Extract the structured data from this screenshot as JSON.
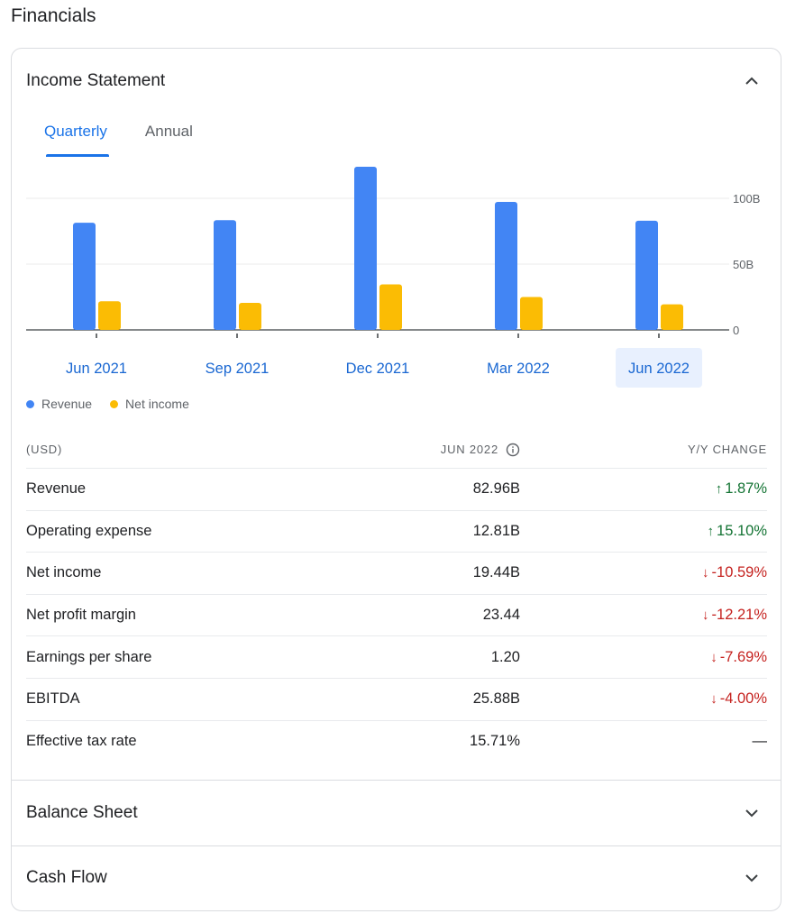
{
  "page": {
    "title": "Financials"
  },
  "income_statement": {
    "title": "Income Statement",
    "expanded": true,
    "tabs": [
      {
        "label": "Quarterly",
        "active": true
      },
      {
        "label": "Annual",
        "active": false
      }
    ],
    "selected_period": "Jun 2022",
    "table": {
      "headers": {
        "label": "(USD)",
        "period": "JUN 2022",
        "change": "Y/Y CHANGE"
      },
      "rows": [
        {
          "label": "Revenue",
          "value": "82.96B",
          "change": "1.87%",
          "direction": "up"
        },
        {
          "label": "Operating expense",
          "value": "12.81B",
          "change": "15.10%",
          "direction": "up"
        },
        {
          "label": "Net income",
          "value": "19.44B",
          "change": "-10.59%",
          "direction": "down"
        },
        {
          "label": "Net profit margin",
          "value": "23.44",
          "change": "-12.21%",
          "direction": "down"
        },
        {
          "label": "Earnings per share",
          "value": "1.20",
          "change": "-7.69%",
          "direction": "down"
        },
        {
          "label": "EBITDA",
          "value": "25.88B",
          "change": "-4.00%",
          "direction": "down"
        },
        {
          "label": "Effective tax rate",
          "value": "15.71%",
          "change": "—",
          "direction": "none"
        }
      ]
    }
  },
  "balance_sheet": {
    "title": "Balance Sheet",
    "expanded": false
  },
  "cash_flow": {
    "title": "Cash Flow",
    "expanded": false
  },
  "colors": {
    "revenue": "#4285f4",
    "net_income": "#fbbc04",
    "accent": "#1a73e8",
    "up": "#137333",
    "down": "#c5221f"
  },
  "chart_data": {
    "type": "bar",
    "categories": [
      "Jun 2021",
      "Sep 2021",
      "Dec 2021",
      "Mar 2022",
      "Jun 2022"
    ],
    "series": [
      {
        "name": "Revenue",
        "values": [
          81.43,
          83.36,
          123.95,
          97.28,
          82.96
        ]
      },
      {
        "name": "Net income",
        "values": [
          21.74,
          20.55,
          34.63,
          25.01,
          19.44
        ]
      }
    ],
    "yticks": [
      "0",
      "50B",
      "100B"
    ],
    "ylim": [
      0,
      125
    ],
    "grid": true,
    "legend": "bottom-left"
  }
}
